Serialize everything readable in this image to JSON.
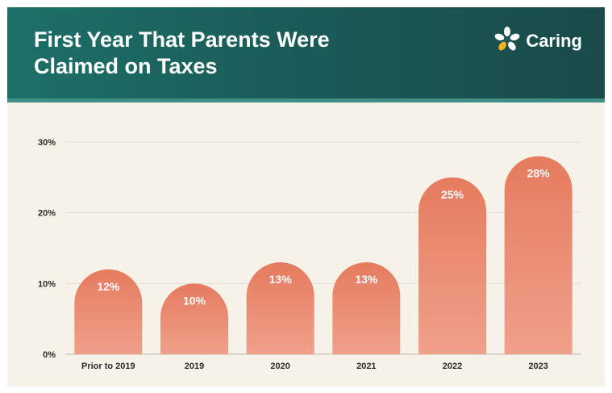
{
  "header": {
    "title_line1": "First Year That Parents Were",
    "title_line2": "Claimed on Taxes",
    "brand_name": "Caring",
    "brand_icon": "caring-flower-logo",
    "background_color": "#1b5c58"
  },
  "chart_data": {
    "type": "bar",
    "categories": [
      "Prior to 2019",
      "2019",
      "2020",
      "2021",
      "2022",
      "2023"
    ],
    "values": [
      12,
      10,
      13,
      13,
      25,
      28
    ],
    "value_labels": [
      "12%",
      "10%",
      "13%",
      "13%",
      "25%",
      "28%"
    ],
    "y_ticks": [
      0,
      10,
      20,
      30
    ],
    "y_tick_labels": [
      "0%",
      "10%",
      "20%",
      "30%"
    ],
    "ylim": [
      0,
      30
    ],
    "grid": true,
    "legend": false,
    "bar_color_top": "#e57b5f",
    "bar_color_bottom": "#f0a08a",
    "title": "",
    "xlabel": "",
    "ylabel": ""
  }
}
